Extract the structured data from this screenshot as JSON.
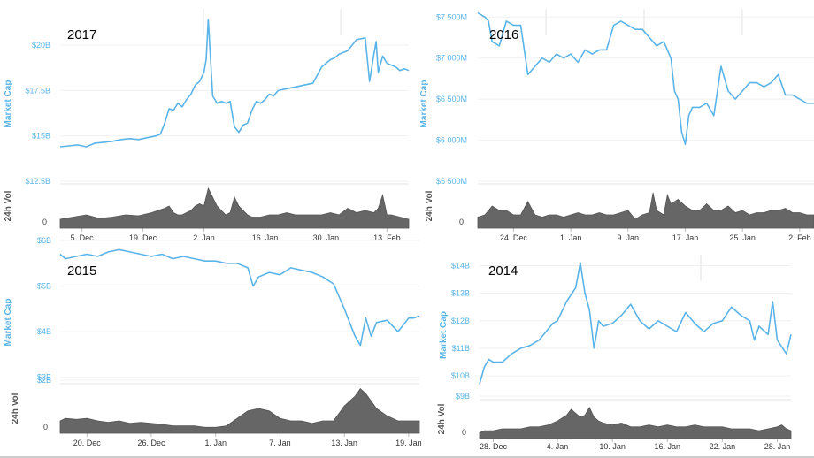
{
  "chart_data": [
    {
      "type": "area",
      "title": "2017",
      "ylabel": "Market Cap",
      "ylabel_volume": "24h Vol",
      "y_ticks": [
        "$20B",
        "$17.5B",
        "$15B",
        "$12.5B"
      ],
      "y_tick_values": [
        20,
        17.5,
        15,
        12.5
      ],
      "ylim": [
        12.5,
        22
      ],
      "volume_tick": "0",
      "x_ticks": [
        "5. Dec",
        "19. Dec",
        "2. Jan",
        "16. Jan",
        "30. Jan",
        "13. Feb"
      ],
      "x_tick_days": [
        5,
        19,
        33,
        47,
        61,
        75
      ],
      "x_range": [
        0,
        80
      ],
      "series": [
        {
          "name": "Market Cap",
          "x": [
            0,
            2,
            4,
            6,
            8,
            10,
            12,
            14,
            16,
            18,
            20,
            22,
            23,
            24,
            25,
            26,
            27,
            28,
            29,
            30,
            31,
            32,
            33,
            33.5,
            34,
            35,
            36,
            37,
            38,
            39,
            40,
            41,
            42,
            43,
            44,
            45,
            46,
            47,
            48,
            49,
            50,
            52,
            54,
            56,
            58,
            60,
            62,
            63,
            64,
            66,
            68,
            70,
            71,
            72,
            72.5,
            73,
            74,
            75,
            76,
            77,
            78,
            79,
            80
          ],
          "y": [
            14.4,
            14.45,
            14.5,
            14.4,
            14.6,
            14.65,
            14.7,
            14.8,
            14.85,
            14.8,
            14.9,
            15.0,
            15.1,
            15.7,
            16.5,
            16.4,
            16.8,
            16.6,
            17.0,
            17.3,
            17.8,
            18.0,
            18.5,
            19.2,
            21.4,
            17.2,
            16.8,
            16.9,
            16.8,
            16.9,
            15.5,
            15.2,
            15.6,
            15.7,
            16.4,
            16.9,
            16.8,
            17.0,
            17.3,
            17.2,
            17.5,
            17.6,
            17.7,
            17.8,
            17.9,
            18.8,
            19.2,
            19.3,
            19.5,
            19.7,
            20.3,
            20.4,
            18.0,
            19.5,
            20.2,
            18.5,
            19.4,
            19.0,
            18.9,
            18.8,
            18.6,
            18.7,
            18.6
          ]
        },
        {
          "name": "24h Vol",
          "x": [
            0,
            3,
            6,
            9,
            12,
            15,
            18,
            21,
            24,
            25,
            26,
            27,
            28,
            29,
            30,
            31,
            32,
            33,
            34,
            35,
            36,
            37,
            38,
            39,
            40,
            41,
            42,
            43,
            44,
            46,
            48,
            50,
            52,
            54,
            56,
            58,
            60,
            62,
            64,
            66,
            68,
            70,
            72,
            73,
            74,
            75,
            76,
            78,
            80
          ],
          "y": [
            0.2,
            0.25,
            0.3,
            0.22,
            0.25,
            0.3,
            0.28,
            0.35,
            0.45,
            0.5,
            0.35,
            0.3,
            0.3,
            0.35,
            0.4,
            0.5,
            0.55,
            0.5,
            0.9,
            0.7,
            0.5,
            0.4,
            0.3,
            0.35,
            0.7,
            0.5,
            0.4,
            0.3,
            0.25,
            0.25,
            0.3,
            0.3,
            0.35,
            0.3,
            0.3,
            0.3,
            0.3,
            0.35,
            0.3,
            0.45,
            0.35,
            0.4,
            0.35,
            0.45,
            0.75,
            0.3,
            0.3,
            0.25,
            0.2
          ]
        }
      ]
    },
    {
      "type": "area",
      "title": "2016",
      "ylabel": "Market Cap",
      "ylabel_volume": "24h Vol",
      "y_ticks": [
        "$7 500M",
        "$7 000M",
        "$6 500M",
        "$6 000M",
        "$5 500M"
      ],
      "y_tick_values": [
        7500,
        7000,
        6500,
        6000,
        5500
      ],
      "ylim": [
        5500,
        7600
      ],
      "volume_tick": "0",
      "x_ticks": [
        "24. Dec",
        "1. Jan",
        "9. Jan",
        "17. Jan",
        "25. Jan",
        "2. Feb"
      ],
      "x_tick_days": [
        24,
        32,
        40,
        48,
        56,
        64
      ],
      "x_range": [
        19,
        66
      ],
      "series": [
        {
          "name": "Market Cap",
          "x": [
            19,
            20,
            20.5,
            21,
            22,
            23,
            24,
            25,
            26,
            27,
            28,
            29,
            30,
            31,
            32,
            33,
            34,
            35,
            36,
            37,
            38,
            39,
            40,
            41,
            42,
            43,
            44,
            45,
            46,
            46.5,
            47,
            47.5,
            48,
            48.5,
            49,
            50,
            51,
            52,
            53,
            54,
            55,
            56,
            57,
            58,
            59,
            60,
            61,
            62,
            63,
            64,
            65,
            66
          ],
          "y": [
            7550,
            7500,
            7450,
            7200,
            7150,
            7450,
            7400,
            7400,
            6800,
            6900,
            7000,
            6950,
            7050,
            7000,
            7050,
            6950,
            7100,
            7050,
            7100,
            7100,
            7400,
            7450,
            7400,
            7350,
            7350,
            7250,
            7150,
            7200,
            7000,
            6600,
            6500,
            6100,
            5950,
            6300,
            6400,
            6400,
            6450,
            6300,
            6900,
            6600,
            6500,
            6600,
            6700,
            6700,
            6650,
            6700,
            6800,
            6550,
            6550,
            6500,
            6450,
            6450
          ]
        },
        {
          "name": "24h Vol",
          "x": [
            19,
            20,
            21,
            22,
            23,
            24,
            25,
            26,
            27,
            28,
            29,
            30,
            31,
            32,
            33,
            34,
            35,
            36,
            37,
            38,
            39,
            40,
            41,
            42,
            43,
            43.5,
            44,
            45,
            45.5,
            46,
            47,
            48,
            49,
            50,
            51,
            52,
            53,
            54,
            55,
            56,
            57,
            58,
            59,
            60,
            61,
            62,
            63,
            64,
            65,
            66
          ],
          "y": [
            0.25,
            0.3,
            0.5,
            0.4,
            0.4,
            0.3,
            0.3,
            0.6,
            0.3,
            0.25,
            0.3,
            0.3,
            0.25,
            0.3,
            0.35,
            0.3,
            0.3,
            0.35,
            0.3,
            0.3,
            0.35,
            0.4,
            0.2,
            0.3,
            0.35,
            0.8,
            0.4,
            0.3,
            0.75,
            0.55,
            0.65,
            0.5,
            0.4,
            0.4,
            0.55,
            0.4,
            0.4,
            0.5,
            0.35,
            0.4,
            0.3,
            0.35,
            0.35,
            0.4,
            0.4,
            0.45,
            0.35,
            0.35,
            0.3,
            0.3
          ]
        }
      ]
    },
    {
      "type": "area",
      "title": "2015",
      "ylabel": "Market Cap",
      "ylabel_volume": "24h Vol",
      "y_ticks": [
        "$6B",
        "$5B",
        "$4B",
        "$3B",
        "$2B"
      ],
      "y_tick_values": [
        6,
        5,
        4,
        3,
        2
      ],
      "ylim": [
        2.8,
        6
      ],
      "volume_tick": "0",
      "x_ticks": [
        "20. Dec",
        "26. Dec",
        "1. Jan",
        "7. Jan",
        "13. Jan",
        "19. Jan"
      ],
      "x_tick_days": [
        20,
        26,
        32,
        38,
        44,
        50
      ],
      "x_range": [
        17.5,
        51
      ],
      "series": [
        {
          "name": "Market Cap",
          "x": [
            17.5,
            18,
            19,
            20,
            21,
            22,
            23,
            24,
            25,
            26,
            27,
            28,
            29,
            30,
            31,
            32,
            33,
            34,
            35,
            35.5,
            36,
            37,
            38,
            39,
            40,
            41,
            42,
            43,
            44,
            44.5,
            45,
            45.5,
            46,
            46.5,
            47,
            48,
            49,
            50,
            50.5,
            51
          ],
          "y": [
            5.7,
            5.6,
            5.65,
            5.7,
            5.65,
            5.75,
            5.8,
            5.75,
            5.7,
            5.65,
            5.7,
            5.6,
            5.65,
            5.6,
            5.55,
            5.55,
            5.5,
            5.5,
            5.4,
            5.0,
            5.2,
            5.3,
            5.25,
            5.4,
            5.35,
            5.3,
            5.2,
            5.05,
            4.5,
            4.2,
            3.9,
            3.7,
            4.3,
            3.9,
            4.2,
            4.25,
            4.0,
            4.3,
            4.3,
            4.35
          ]
        },
        {
          "name": "24h Vol",
          "x": [
            17.5,
            18,
            19,
            20,
            21,
            22,
            23,
            24,
            25,
            26,
            27,
            28,
            29,
            30,
            31,
            32,
            33,
            34,
            35,
            36,
            37,
            38,
            39,
            40,
            41,
            42,
            43,
            44,
            45,
            45.5,
            46,
            47,
            48,
            49,
            50,
            51
          ],
          "y": [
            0.25,
            0.3,
            0.28,
            0.3,
            0.25,
            0.22,
            0.25,
            0.2,
            0.22,
            0.2,
            0.18,
            0.15,
            0.15,
            0.15,
            0.12,
            0.12,
            0.15,
            0.3,
            0.45,
            0.5,
            0.45,
            0.3,
            0.25,
            0.25,
            0.2,
            0.25,
            0.25,
            0.55,
            0.75,
            0.9,
            0.8,
            0.5,
            0.35,
            0.25,
            0.25,
            0.25
          ]
        }
      ]
    },
    {
      "type": "area",
      "title": "2014",
      "ylabel": "Market Cap",
      "ylabel_volume": "24h Vol",
      "y_ticks": [
        "$14B",
        "$13B",
        "$12B",
        "$11B",
        "$10B",
        "$9B"
      ],
      "y_tick_values": [
        14,
        13,
        12,
        11,
        10,
        9
      ],
      "ylim": [
        9.2,
        14.4
      ],
      "volume_tick": "0",
      "x_ticks": [
        "28. Dec",
        "4. Jan",
        "10. Jan",
        "16. Jan",
        "22. Jan",
        "28. Jan"
      ],
      "x_tick_days": [
        28,
        35,
        41,
        47,
        53,
        59
      ],
      "x_range": [
        26.5,
        60.5
      ],
      "series": [
        {
          "name": "Market Cap",
          "x": [
            26.5,
            27,
            27.5,
            28,
            29,
            30,
            31,
            32,
            33,
            34,
            34.5,
            35,
            36,
            37,
            37.5,
            38,
            38.5,
            39,
            39.5,
            40,
            41,
            42,
            43,
            44,
            45,
            46,
            47,
            48,
            49,
            50,
            51,
            52,
            53,
            54,
            55,
            56,
            56.5,
            57,
            58,
            58.5,
            59,
            60,
            60.5
          ],
          "y": [
            9.7,
            10.3,
            10.6,
            10.5,
            10.5,
            10.8,
            11.0,
            11.1,
            11.3,
            11.7,
            11.9,
            12.0,
            12.7,
            13.2,
            14.1,
            13.0,
            12.4,
            11.0,
            12.0,
            11.8,
            11.9,
            12.2,
            12.6,
            12.0,
            11.7,
            12.0,
            11.8,
            11.6,
            12.3,
            11.9,
            11.6,
            11.9,
            12.0,
            12.5,
            12.2,
            12.0,
            11.3,
            11.8,
            11.5,
            12.7,
            11.3,
            10.8,
            11.5
          ]
        },
        {
          "name": "24h Vol",
          "x": [
            26.5,
            27,
            28,
            29,
            30,
            31,
            32,
            33,
            34,
            35,
            36,
            36.5,
            37,
            37.5,
            38,
            38.5,
            39,
            39.5,
            40,
            41,
            42,
            43,
            44,
            45,
            46,
            47,
            48,
            49,
            50,
            51,
            52,
            53,
            54,
            55,
            56,
            57,
            58,
            59,
            59.5,
            60,
            60.5
          ],
          "y": [
            0.15,
            0.2,
            0.2,
            0.25,
            0.25,
            0.25,
            0.3,
            0.3,
            0.35,
            0.45,
            0.6,
            0.75,
            0.65,
            0.55,
            0.6,
            0.8,
            0.55,
            0.45,
            0.4,
            0.35,
            0.4,
            0.3,
            0.3,
            0.35,
            0.3,
            0.35,
            0.3,
            0.3,
            0.35,
            0.3,
            0.3,
            0.3,
            0.25,
            0.25,
            0.25,
            0.2,
            0.25,
            0.3,
            0.35,
            0.25,
            0.2
          ]
        }
      ]
    }
  ]
}
